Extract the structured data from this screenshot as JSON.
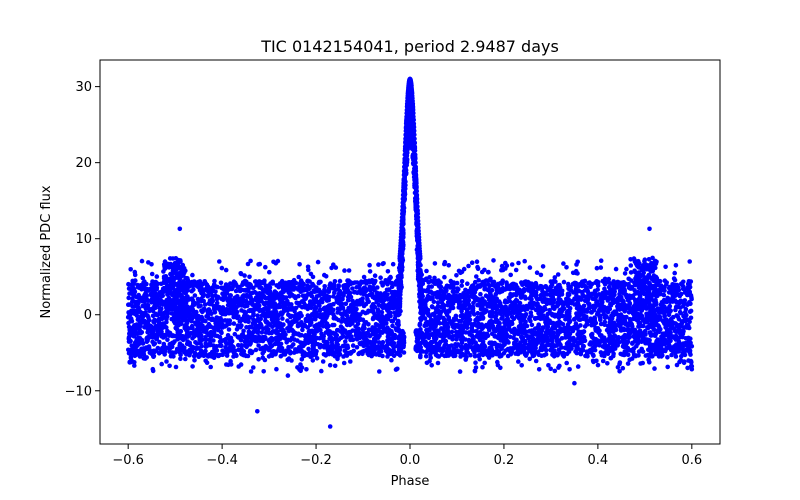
{
  "chart_data": {
    "type": "scatter",
    "title": "TIC 0142154041, period 2.9487 days",
    "xlabel": "Phase",
    "ylabel": "Normalized PDC flux",
    "xlim": [
      -0.66,
      0.66
    ],
    "ylim": [
      -17,
      33.5
    ],
    "x_ticks": [
      -0.6,
      -0.4,
      -0.2,
      0.0,
      0.2,
      0.4,
      0.6
    ],
    "x_tick_labels": [
      "−0.6",
      "−0.4",
      "−0.2",
      "0.0",
      "0.2",
      "0.4",
      "0.6"
    ],
    "y_ticks": [
      -10,
      0,
      10,
      20,
      30
    ],
    "y_tick_labels": [
      "−10",
      "0",
      "10",
      "20",
      "30"
    ],
    "grid": false,
    "legend": "none",
    "series_color": "#0000ff",
    "phase_range": [
      -0.6,
      0.6
    ],
    "baseline_band": [
      -5.5,
      4.5
    ],
    "peak": {
      "x": 0.0,
      "y": 31.0,
      "width": 0.012
    },
    "secondary_bumps": [
      {
        "x": -0.5,
        "y": 7.5
      },
      {
        "x": 0.5,
        "y": 7.5
      }
    ],
    "outliers": [
      {
        "x": -0.49,
        "y": 11.3
      },
      {
        "x": 0.51,
        "y": 11.3
      },
      {
        "x": -0.325,
        "y": -12.7
      },
      {
        "x": -0.17,
        "y": -14.7
      },
      {
        "x": 0.35,
        "y": -9.0
      },
      {
        "x": -0.26,
        "y": -8.0
      }
    ]
  }
}
